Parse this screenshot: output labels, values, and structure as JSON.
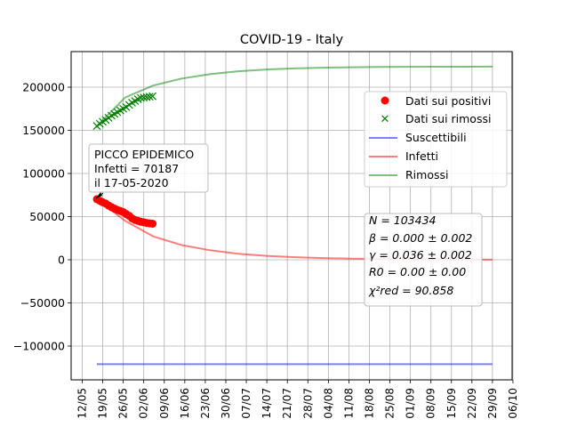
{
  "chart_data": {
    "type": "line",
    "title": "COVID-19 - Italy",
    "xlabel": "",
    "ylabel": "",
    "x_tick_labels": [
      "12/05",
      "19/05",
      "26/05",
      "02/06",
      "09/06",
      "16/06",
      "23/06",
      "30/06",
      "07/07",
      "14/07",
      "21/07",
      "28/07",
      "04/08",
      "11/08",
      "18/08",
      "25/08",
      "01/09",
      "08/09",
      "15/09",
      "22/09",
      "29/09",
      "06/10"
    ],
    "y_tick_labels": [
      "−100000",
      "−50000",
      "0",
      "50000",
      "100000",
      "150000",
      "200000"
    ],
    "ylim": [
      -140000,
      240000
    ],
    "grid": true,
    "legend_position": "upper-right",
    "legend": [
      {
        "label": "Dati sui positivi",
        "color": "#ff0000",
        "marker": "o"
      },
      {
        "label": "Dati sui rimossi",
        "color": "#008000",
        "marker": "x"
      },
      {
        "label": "Suscettibili",
        "color": "#0000ff"
      },
      {
        "label": "Infetti",
        "color": "#ff0000"
      },
      {
        "label": "Rimossi",
        "color": "#008000"
      }
    ],
    "series": [
      {
        "name": "Dati sui positivi",
        "kind": "scatter",
        "x_day_offsets": [
          0,
          1,
          2,
          3,
          4,
          5,
          6,
          7,
          8,
          9,
          10,
          11,
          12,
          13,
          14,
          15,
          16,
          17,
          18,
          19
        ],
        "values": [
          70187,
          68351,
          66553,
          65129,
          62752,
          60960,
          59322,
          57752,
          56594,
          55300,
          52942,
          50966,
          47986,
          46175,
          45053,
          44000,
          43400,
          42700,
          42200,
          41800
        ]
      },
      {
        "name": "Dati sui rimossi",
        "kind": "scatter",
        "x_day_offsets": [
          0,
          1,
          2,
          3,
          4,
          5,
          6,
          7,
          8,
          9,
          10,
          11,
          12,
          13,
          14,
          15,
          16,
          17,
          18,
          19
        ],
        "values": [
          155000,
          157500,
          160000,
          162000,
          164500,
          167000,
          169000,
          171000,
          173000,
          175000,
          177000,
          179500,
          182000,
          184000,
          186000,
          187500,
          188000,
          188500,
          189000,
          189500
        ]
      },
      {
        "name": "Suscettibili",
        "values": [
          -121000,
          -121000
        ]
      },
      {
        "name": "Infetti",
        "values": [
          70187,
          45000,
          27000,
          17000,
          11000,
          7000,
          4500,
          3000,
          2000,
          1300,
          900,
          600,
          400,
          250,
          150
        ]
      },
      {
        "name": "Rimossi",
        "values": [
          155000,
          188000,
          202000,
          210000,
          215000,
          218500,
          220500,
          221800,
          222600,
          223100,
          223400,
          223600,
          223700,
          223750,
          223800
        ]
      }
    ],
    "annotation_peak": [
      "PICCO EPIDEMICO",
      "Infetti = 70187",
      "il 17-05-2020"
    ],
    "annotation_params": [
      "N = 103434",
      "β = 0.000 ± 0.002",
      "γ = 0.036 ± 0.002",
      "R0 = 0.00 ± 0.00",
      "χ²red = 90.858"
    ]
  }
}
